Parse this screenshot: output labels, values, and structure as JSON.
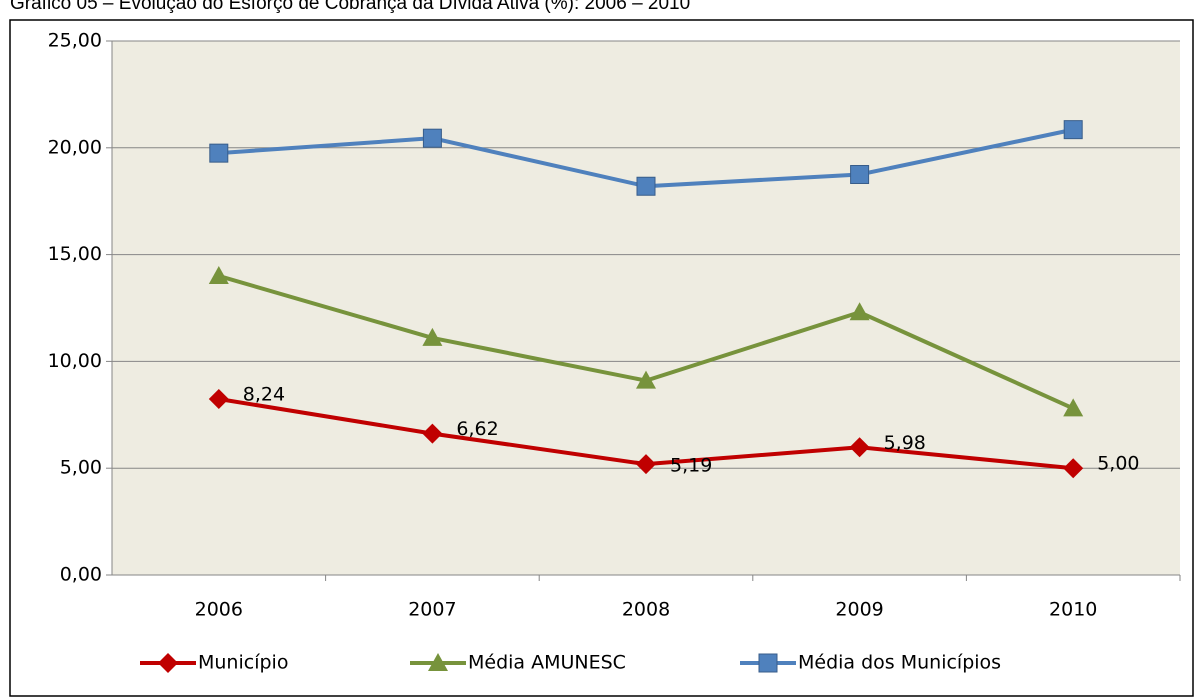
{
  "chart_data": {
    "type": "line",
    "title": "Gráfico 05 – Evolução do Esforço de Cobrança da Dívida Ativa (%): 2006 – 2010",
    "categories": [
      "2006",
      "2007",
      "2008",
      "2009",
      "2010"
    ],
    "series": [
      {
        "name": "Município",
        "color": "#c00000",
        "marker": "diamond",
        "values": [
          8.24,
          6.62,
          5.19,
          5.98,
          5.0
        ],
        "value_labels": [
          "8,24",
          "6,62",
          "5,19",
          "5,98",
          "5,00"
        ]
      },
      {
        "name": "Média AMUNESC",
        "color": "#77933c",
        "marker": "triangle",
        "values": [
          14.0,
          11.1,
          9.1,
          12.3,
          7.8
        ]
      },
      {
        "name": "Média dos Municípios",
        "color": "#4f81bd",
        "marker": "square",
        "values": [
          19.75,
          20.45,
          18.2,
          18.75,
          20.85
        ]
      }
    ],
    "ylim": [
      0,
      25
    ],
    "yticks": [
      {
        "value": 0,
        "label": "0,00"
      },
      {
        "value": 5,
        "label": "5,00"
      },
      {
        "value": 10,
        "label": "10,00"
      },
      {
        "value": 15,
        "label": "15,00"
      },
      {
        "value": 20,
        "label": "20,00"
      },
      {
        "value": 25,
        "label": "25,00"
      }
    ],
    "grid": true,
    "legend": "bottom"
  }
}
